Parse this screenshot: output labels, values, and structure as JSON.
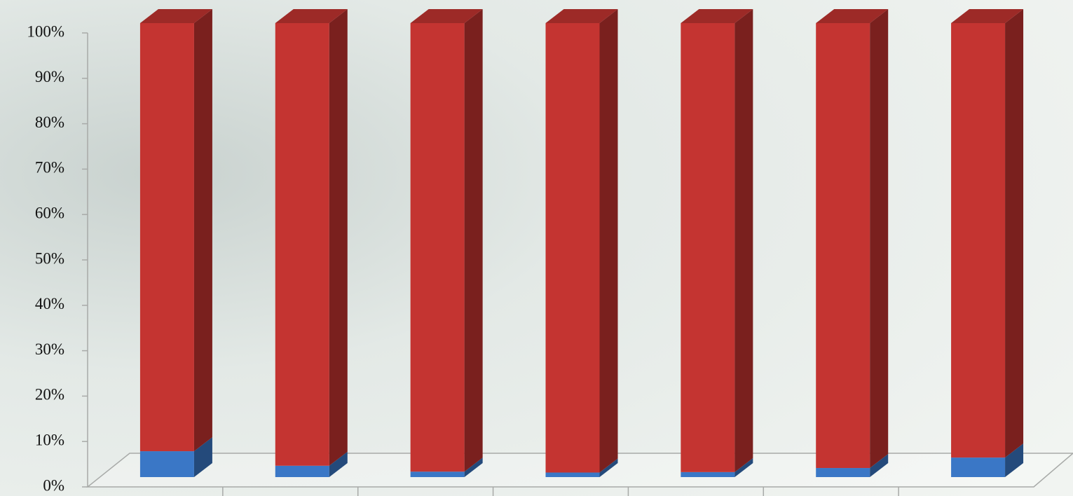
{
  "chart_data": {
    "type": "stacked-bar-3d",
    "categories": [
      null,
      null,
      null,
      null,
      null,
      null,
      null
    ],
    "series": [
      {
        "color": "#3a77c6",
        "values": [
          5.7,
          2.5,
          1.2,
          1,
          1.1,
          2,
          4.3
        ]
      },
      {
        "color": "#c43431",
        "values": [
          94.3,
          97.5,
          98.8,
          99,
          98.9,
          98,
          95.7
        ]
      }
    ],
    "ylim": [
      0,
      100
    ],
    "yticks": [
      {
        "value": 0,
        "label": "0%"
      },
      {
        "value": 10,
        "label": "10%"
      },
      {
        "value": 20,
        "label": "20%"
      },
      {
        "value": 30,
        "label": "30%"
      },
      {
        "value": 40,
        "label": "40%"
      },
      {
        "value": 50,
        "label": "50%"
      },
      {
        "value": 60,
        "label": "60%"
      },
      {
        "value": 70,
        "label": "70%"
      },
      {
        "value": 80,
        "label": "80%"
      },
      {
        "value": 90,
        "label": "90%"
      },
      {
        "value": 100,
        "label": "100%"
      }
    ]
  }
}
